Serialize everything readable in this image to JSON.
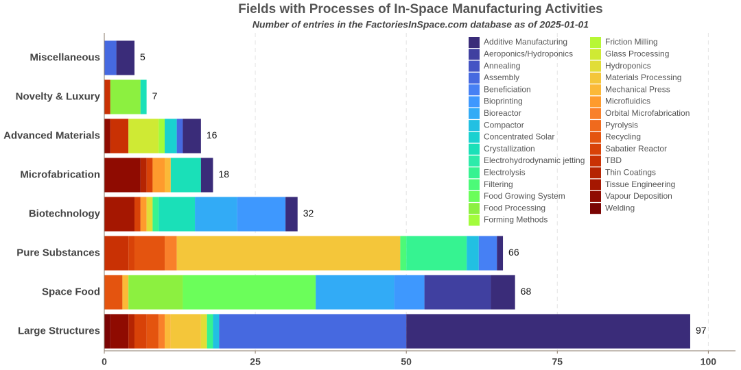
{
  "chart_data": {
    "type": "stacked-bar-horizontal",
    "title": "Fields with Processes of In-Space Manufacturing Activities",
    "subtitle": "Number of entries in the FactoriesInSpace.com database as of 2025-01-01",
    "categories": [
      "Miscellaneous",
      "Novelty & Luxury",
      "Advanced Materials",
      "Microfabrication",
      "Biotechnology",
      "Pure Substances",
      "Space Food",
      "Large Structures"
    ],
    "totals": [
      5,
      7,
      16,
      18,
      32,
      66,
      68,
      97
    ],
    "xlim": [
      0,
      104.5
    ],
    "xticks": [
      0,
      25,
      50,
      75,
      100
    ],
    "grid": true,
    "series": [
      {
        "name": "Additive Manufacturing",
        "color": "#3a2c79",
        "values": [
          3,
          0,
          3,
          2,
          2,
          1,
          4,
          47
        ]
      },
      {
        "name": "Aeroponics/Hydroponics",
        "color": "#4040a0",
        "values": [
          0,
          0,
          0,
          0,
          0,
          0,
          11,
          0
        ]
      },
      {
        "name": "Annealing",
        "color": "#4454c4",
        "values": [
          0,
          0,
          0,
          0,
          0,
          0,
          0,
          0
        ]
      },
      {
        "name": "Assembly",
        "color": "#4669e0",
        "values": [
          2,
          0,
          1,
          0,
          0,
          0,
          0,
          31
        ]
      },
      {
        "name": "Beneficiation",
        "color": "#4680f4",
        "values": [
          0,
          0,
          0,
          0,
          0,
          3,
          0,
          0
        ]
      },
      {
        "name": "Bioprinting",
        "color": "#3e98fe",
        "values": [
          0,
          0,
          0,
          0,
          8,
          0,
          5,
          0
        ]
      },
      {
        "name": "Bioreactor",
        "color": "#32abf6",
        "values": [
          0,
          0,
          0,
          0,
          7,
          0,
          13,
          0
        ]
      },
      {
        "name": "Compactor",
        "color": "#22c0e2",
        "values": [
          0,
          0,
          0,
          0,
          0,
          2,
          0,
          1
        ]
      },
      {
        "name": "Concentrated Solar",
        "color": "#1ad1d0",
        "values": [
          0,
          0,
          2,
          0,
          0,
          0,
          0,
          0
        ]
      },
      {
        "name": "Crystallization",
        "color": "#1ae0b8",
        "values": [
          0,
          1,
          0,
          5,
          6,
          0,
          0,
          0
        ]
      },
      {
        "name": "Electrohydrodynamic jetting",
        "color": "#2debaa",
        "values": [
          0,
          0,
          0,
          0,
          0,
          0,
          0,
          0
        ]
      },
      {
        "name": "Electrolysis",
        "color": "#36f391",
        "values": [
          0,
          0,
          0,
          0,
          1,
          10,
          0,
          1
        ]
      },
      {
        "name": "Filtering",
        "color": "#4cfa78",
        "values": [
          0,
          0,
          0,
          0,
          0,
          1,
          0,
          0
        ]
      },
      {
        "name": "Food Growing System",
        "color": "#6bfe5a",
        "values": [
          0,
          0,
          0,
          0,
          0,
          0,
          22,
          0
        ]
      },
      {
        "name": "Food Processing",
        "color": "#8cf040",
        "values": [
          0,
          5,
          0,
          0,
          0,
          0,
          9,
          0
        ]
      },
      {
        "name": "Forming Methods",
        "color": "#a2fc3c",
        "values": [
          0,
          0,
          1,
          0,
          0,
          0,
          0,
          0
        ]
      },
      {
        "name": "Friction Milling",
        "color": "#b7f735",
        "values": [
          0,
          0,
          0,
          0,
          0,
          0,
          0,
          0
        ]
      },
      {
        "name": "Glass Processing",
        "color": "#cfea34",
        "values": [
          0,
          0,
          5,
          0,
          0,
          0,
          0,
          0
        ]
      },
      {
        "name": "Hydroponics",
        "color": "#e1dd37",
        "values": [
          0,
          0,
          0,
          0,
          1,
          0,
          0,
          1
        ]
      },
      {
        "name": "Materials Processing",
        "color": "#f4c63a",
        "values": [
          0,
          0,
          0,
          0,
          0,
          37,
          0,
          5
        ]
      },
      {
        "name": "Mechanical Press",
        "color": "#fbb938",
        "values": [
          0,
          0,
          0,
          1,
          0,
          0,
          1,
          1
        ]
      },
      {
        "name": "Microfluidics",
        "color": "#fe9b2d",
        "values": [
          0,
          0,
          0,
          2,
          1,
          0,
          0,
          0
        ]
      },
      {
        "name": "Orbital Microfabrication",
        "color": "#f9802a",
        "values": [
          0,
          0,
          0,
          0,
          0,
          2,
          0,
          1
        ]
      },
      {
        "name": "Pyrolysis",
        "color": "#f06a1d",
        "values": [
          0,
          0,
          0,
          0,
          0,
          0,
          0,
          0
        ]
      },
      {
        "name": "Recycling",
        "color": "#e4540f",
        "values": [
          0,
          0,
          0,
          0,
          0,
          5,
          3,
          2
        ]
      },
      {
        "name": "Sabatier Reactor",
        "color": "#d84208",
        "values": [
          0,
          0,
          0,
          1,
          1,
          1,
          0,
          2
        ]
      },
      {
        "name": "TBD",
        "color": "#c93104",
        "values": [
          0,
          1,
          3,
          0,
          0,
          4,
          0,
          0
        ]
      },
      {
        "name": "Thin Coatings",
        "color": "#b52402",
        "values": [
          0,
          0,
          0,
          1,
          0,
          0,
          0,
          1
        ]
      },
      {
        "name": "Tissue Engineering",
        "color": "#a51701",
        "values": [
          0,
          0,
          0,
          0,
          5,
          0,
          0,
          0
        ]
      },
      {
        "name": "Vapour Deposition",
        "color": "#8f0b01",
        "values": [
          0,
          0,
          1,
          6,
          0,
          0,
          0,
          3
        ]
      },
      {
        "name": "Welding",
        "color": "#7a0403",
        "values": [
          0,
          0,
          0,
          0,
          0,
          0,
          0,
          1
        ]
      }
    ]
  }
}
